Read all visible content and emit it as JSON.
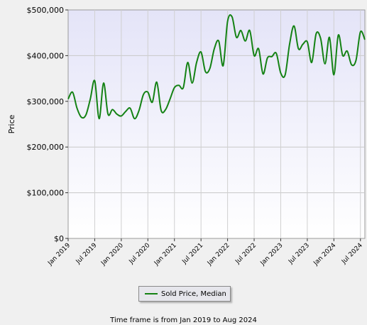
{
  "chart_data": {
    "type": "line",
    "title": "",
    "xlabel": "",
    "ylabel": "Price",
    "ylim": [
      0,
      500000
    ],
    "y_ticks": [
      0,
      100000,
      200000,
      300000,
      400000,
      500000
    ],
    "y_tick_labels": [
      "$0",
      "$100,000",
      "$200,000",
      "$300,000",
      "$400,000",
      "$500,000"
    ],
    "x_tick_labels": [
      "Jan 2019",
      "Jul 2019",
      "Jan 2020",
      "Jul 2020",
      "Jan 2021",
      "Jul 2021",
      "Jan 2022",
      "Jul 2022",
      "Jan 2023",
      "Jul 2023",
      "Jan 2024",
      "Jul 2024"
    ],
    "grid": true,
    "legend_position": "bottom",
    "series": [
      {
        "name": "Sold Price, Median",
        "color": "#148214",
        "x": [
          "2019-01",
          "2019-02",
          "2019-03",
          "2019-04",
          "2019-05",
          "2019-06",
          "2019-07",
          "2019-08",
          "2019-09",
          "2019-10",
          "2019-11",
          "2019-12",
          "2020-01",
          "2020-02",
          "2020-03",
          "2020-04",
          "2020-05",
          "2020-06",
          "2020-07",
          "2020-08",
          "2020-09",
          "2020-10",
          "2020-11",
          "2020-12",
          "2021-01",
          "2021-02",
          "2021-03",
          "2021-04",
          "2021-05",
          "2021-06",
          "2021-07",
          "2021-08",
          "2021-09",
          "2021-10",
          "2021-11",
          "2021-12",
          "2022-01",
          "2022-02",
          "2022-03",
          "2022-04",
          "2022-05",
          "2022-06",
          "2022-07",
          "2022-08",
          "2022-09",
          "2022-10",
          "2022-11",
          "2022-12",
          "2023-01",
          "2023-02",
          "2023-03",
          "2023-04",
          "2023-05",
          "2023-06",
          "2023-07",
          "2023-08",
          "2023-09",
          "2023-10",
          "2023-11",
          "2023-12",
          "2024-01",
          "2024-02",
          "2024-03",
          "2024-04",
          "2024-05",
          "2024-06",
          "2024-07",
          "2024-08"
        ],
        "values": [
          305000,
          320000,
          285000,
          265000,
          270000,
          305000,
          345000,
          262000,
          340000,
          272000,
          282000,
          272000,
          268000,
          278000,
          285000,
          262000,
          280000,
          315000,
          320000,
          298000,
          342000,
          280000,
          282000,
          305000,
          330000,
          335000,
          330000,
          385000,
          340000,
          385000,
          408000,
          365000,
          372000,
          415000,
          432000,
          378000,
          475000,
          485000,
          440000,
          455000,
          432000,
          455000,
          400000,
          415000,
          360000,
          395000,
          398000,
          405000,
          362000,
          358000,
          425000,
          465000,
          415000,
          425000,
          430000,
          385000,
          448000,
          438000,
          382000,
          440000,
          358000,
          445000,
          400000,
          410000,
          380000,
          390000,
          452000,
          435000
        ]
      }
    ]
  },
  "legend": {
    "label": "Sold Price, Median"
  },
  "footnote": "Time frame is from Jan 2019 to Aug 2024"
}
